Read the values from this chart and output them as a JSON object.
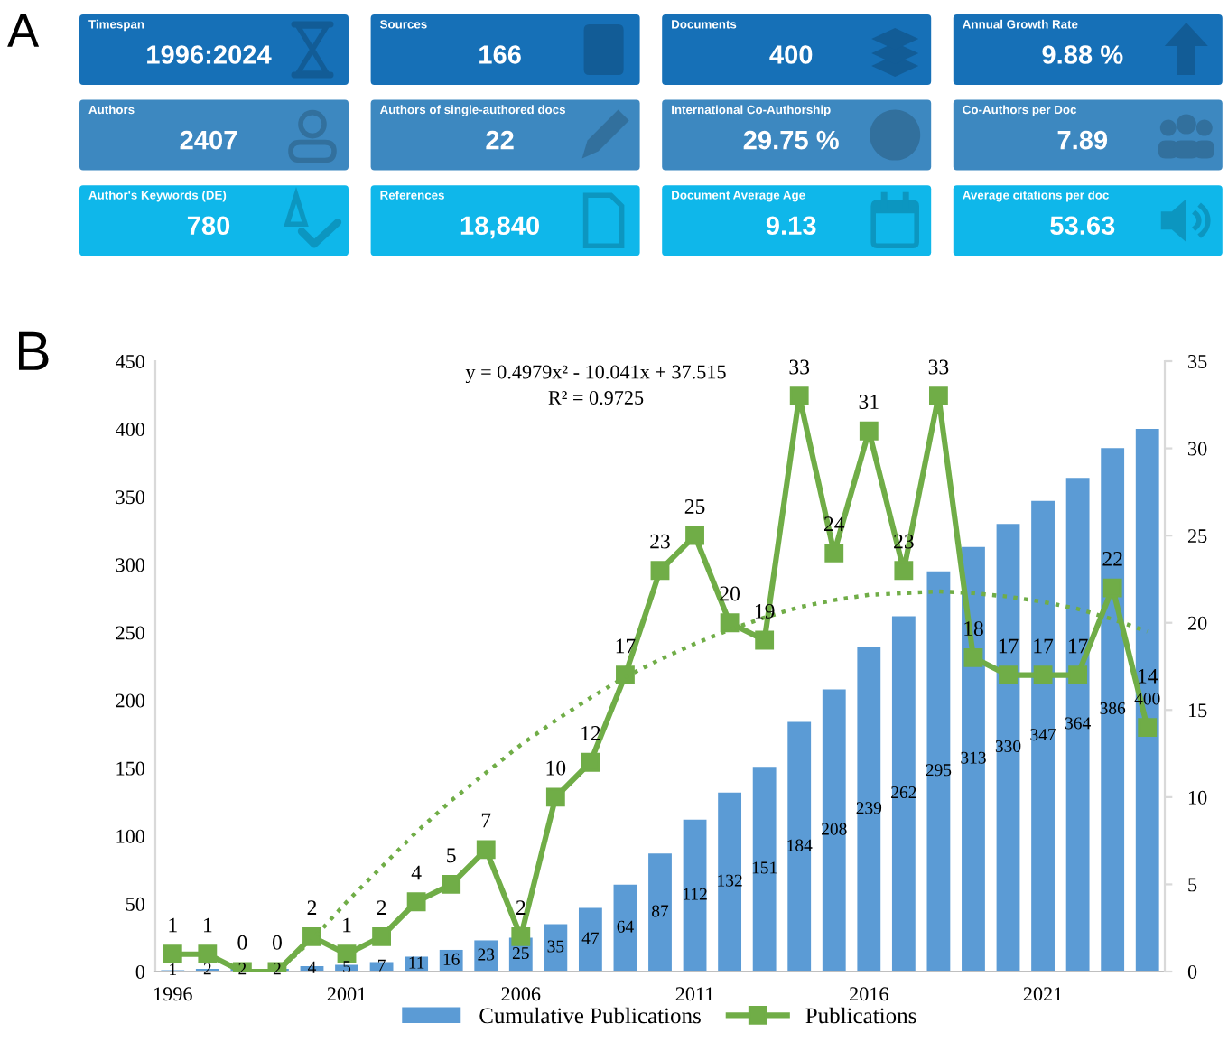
{
  "chart_data": [
    {
      "type": "other",
      "title": "A",
      "annotations": [
        "Timespan",
        "1996:2024",
        "Sources",
        "166",
        "Documents",
        "400",
        "Annual Growth Rate",
        "9.88 %",
        "Authors",
        "2407",
        "Authors of single-authored docs",
        "22",
        "International Co-Authorship",
        "29.75 %",
        "Co-Authors per Doc",
        "7.89",
        "Author's Keywords (DE)",
        "780",
        "References",
        "18,840",
        "Document Average Age",
        "9.13",
        "Average citations per doc",
        "53.63"
      ],
      "colors": [
        "#1670b7",
        "#1670b7",
        "#1670b7",
        "#1670b7",
        "#3d88c0",
        "#3d88c0",
        "#3d88c0",
        "#3d88c0",
        "#0fb7ea",
        "#0fb7ea",
        "#0fb7ea",
        "#0fb7ea"
      ]
    },
    {
      "type": "bar",
      "title": "B",
      "categories": [
        "1996",
        null,
        null,
        null,
        null,
        "2001",
        null,
        null,
        null,
        null,
        "2006",
        null,
        null,
        null,
        null,
        "2011",
        null,
        null,
        null,
        null,
        "2016",
        null,
        null,
        null,
        null,
        "2021",
        null,
        null,
        null
      ],
      "series": [
        {
          "name": "Cumulative Publications",
          "type": "bar",
          "color": "#5b9bd5",
          "data_labels": true,
          "values": [
            1,
            2,
            2,
            2,
            4,
            5,
            7,
            11,
            16,
            23,
            25,
            35,
            47,
            64,
            87,
            112,
            132,
            151,
            184,
            208,
            239,
            262,
            295,
            313,
            330,
            347,
            364,
            386,
            400
          ]
        },
        {
          "name": "Publications",
          "type": "line",
          "axis": "y2",
          "color": "#70ad47",
          "marker": "square",
          "data_labels": true,
          "values": [
            1,
            1,
            0,
            0,
            2,
            1,
            2,
            4,
            5,
            7,
            2,
            10,
            12,
            17,
            23,
            25,
            20,
            19,
            33,
            24,
            31,
            23,
            33,
            18,
            17,
            17,
            17,
            22,
            14
          ]
        },
        {
          "type": "line",
          "axis": "y2",
          "color": "#70ad47",
          "line_style": "dotted",
          "values": [
            null,
            null,
            null,
            0,
            1.8,
            4.0,
            6.0,
            8.0,
            9.8,
            11.4,
            13.0,
            14.4,
            15.7,
            16.9,
            17.9,
            18.8,
            19.6,
            20.3,
            20.9,
            21.3,
            21.6,
            21.7,
            21.8,
            21.7,
            21.5,
            21.2,
            20.8,
            20.2,
            19.5
          ]
        }
      ],
      "ylim": [
        0,
        450
      ],
      "yticks": [
        0,
        50,
        100,
        150,
        200,
        250,
        300,
        350,
        400,
        450
      ],
      "y2lim": [
        0,
        35
      ],
      "y2ticks": [
        0,
        5,
        10,
        15,
        20,
        25,
        30,
        35
      ],
      "annotations": [
        "y = 0.4979x² - 10.041x + 37.515",
        "R² = 0.9725"
      ],
      "legend": "bottom"
    }
  ]
}
